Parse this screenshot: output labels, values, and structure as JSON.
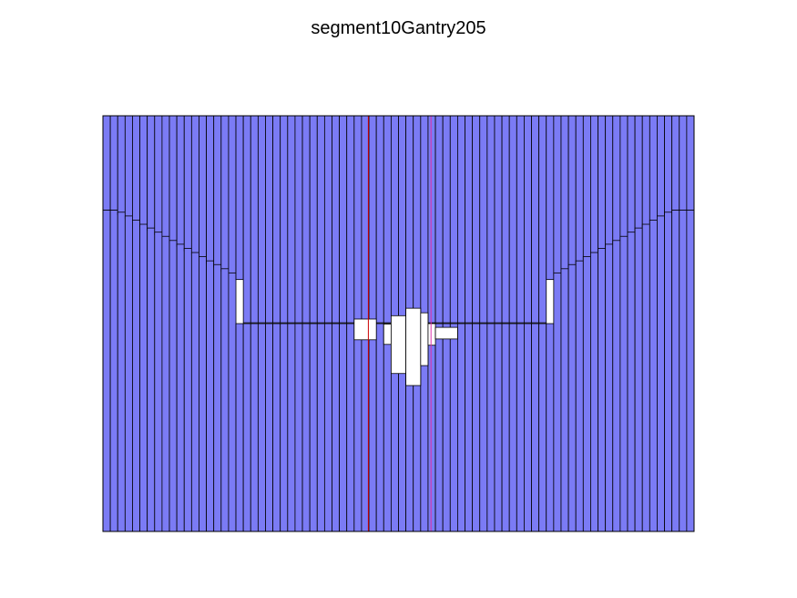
{
  "title": "segment10Gantry205",
  "leaf_count": 80,
  "colors": {
    "leaf_fill": "#7b7bf5",
    "leaf_edge": "#000000",
    "aperture": "#ffffff",
    "jaw_line": "#cc0000",
    "jaw_line_alt": "#dd33aa"
  },
  "bank_a_positions": [
    0.227,
    0.227,
    0.238,
    0.247,
    0.257,
    0.267,
    0.276,
    0.286,
    0.296,
    0.306,
    0.315,
    0.325,
    0.335,
    0.345,
    0.355,
    0.364,
    0.374,
    0.384,
    0.394,
    0.498,
    0.498,
    0.498,
    0.498,
    0.498,
    0.498,
    0.498,
    0.498,
    0.498,
    0.498,
    0.498,
    0.498,
    0.498,
    0.498,
    0.498,
    0.498,
    0.498,
    0.498,
    0.498,
    0.498,
    0.498,
    0.498,
    0.498,
    0.498,
    0.498,
    0.498,
    0.498,
    0.498,
    0.498,
    0.498,
    0.498,
    0.498,
    0.498,
    0.498,
    0.498,
    0.498,
    0.498,
    0.498,
    0.498,
    0.498,
    0.498,
    0.394,
    0.384,
    0.374,
    0.364,
    0.355,
    0.345,
    0.335,
    0.325,
    0.315,
    0.306,
    0.296,
    0.286,
    0.276,
    0.267,
    0.257,
    0.247,
    0.238,
    0.227,
    0.227,
    0.227
  ],
  "bank_b_positions": [
    0.227,
    0.227,
    0.232,
    0.241,
    0.251,
    0.261,
    0.27,
    0.28,
    0.29,
    0.3,
    0.309,
    0.319,
    0.329,
    0.339,
    0.349,
    0.358,
    0.368,
    0.378,
    0.5,
    0.5,
    0.5,
    0.5,
    0.5,
    0.5,
    0.5,
    0.5,
    0.5,
    0.5,
    0.5,
    0.5,
    0.5,
    0.5,
    0.5,
    0.5,
    0.5,
    0.5,
    0.5,
    0.5,
    0.5,
    0.5,
    0.5,
    0.5,
    0.5,
    0.5,
    0.5,
    0.5,
    0.5,
    0.5,
    0.5,
    0.5,
    0.5,
    0.5,
    0.5,
    0.5,
    0.5,
    0.5,
    0.5,
    0.5,
    0.5,
    0.5,
    0.5,
    0.378,
    0.368,
    0.358,
    0.349,
    0.339,
    0.329,
    0.319,
    0.309,
    0.3,
    0.29,
    0.28,
    0.27,
    0.261,
    0.251,
    0.241,
    0.232,
    0.227,
    0.227,
    0.227
  ],
  "central_aperture_blocks": [
    {
      "leaf_from": 34,
      "leaf_to": 36,
      "top": 0.489,
      "bottom": 0.539
    },
    {
      "leaf_from": 38,
      "leaf_to": 38,
      "top": 0.501,
      "bottom": 0.55
    },
    {
      "leaf_from": 39,
      "leaf_to": 40,
      "top": 0.481,
      "bottom": 0.62
    },
    {
      "leaf_from": 41,
      "leaf_to": 42,
      "top": 0.463,
      "bottom": 0.649
    },
    {
      "leaf_from": 43,
      "leaf_to": 43,
      "top": 0.474,
      "bottom": 0.601
    },
    {
      "leaf_from": 44,
      "leaf_to": 44,
      "top": 0.5,
      "bottom": 0.552
    },
    {
      "leaf_from": 45,
      "leaf_to": 47,
      "top": 0.509,
      "bottom": 0.537
    }
  ],
  "jaw_lines": [
    0.449,
    0.555
  ]
}
